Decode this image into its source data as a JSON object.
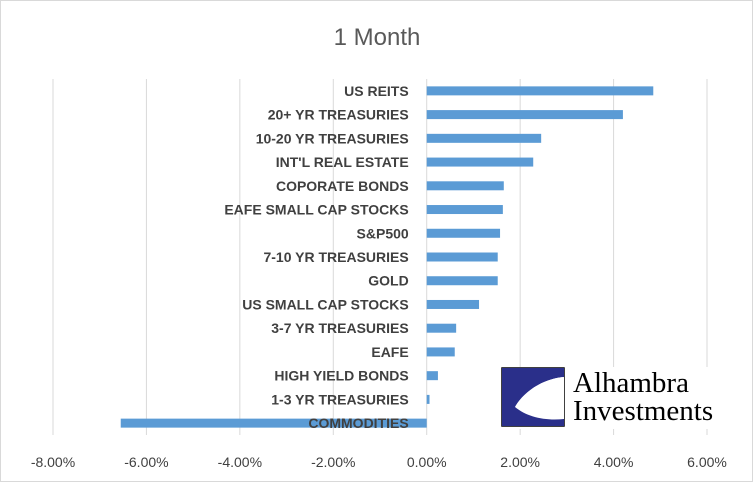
{
  "chart_data": {
    "type": "bar",
    "orientation": "horizontal",
    "title": "1 Month",
    "categories": [
      "US REITS",
      "20+ YR TREASURIES",
      "10-20 YR TREASURIES",
      "INT'L REAL ESTATE",
      "COPORATE BONDS",
      "EAFE SMALL CAP STOCKS",
      "S&P500",
      "7-10 YR TREASURIES",
      "GOLD",
      "US SMALL CAP STOCKS",
      "3-7 YR TREASURIES",
      "EAFE",
      "HIGH YIELD BONDS",
      "1-3 YR TREASURIES",
      "COMMODITIES"
    ],
    "values": [
      4.85,
      4.2,
      2.45,
      2.28,
      1.65,
      1.63,
      1.57,
      1.52,
      1.52,
      1.12,
      0.63,
      0.6,
      0.24,
      0.06,
      -6.55
    ],
    "x_ticks": [
      "-8.00%",
      "-6.00%",
      "-4.00%",
      "-2.00%",
      "0.00%",
      "2.00%",
      "4.00%",
      "6.00%"
    ],
    "xlim": [
      -8,
      6
    ],
    "grid": true,
    "colors": {
      "bar": "#5b9bd5",
      "grid": "#d9d9d9",
      "text": "#404040",
      "title": "#595959"
    }
  },
  "logo": {
    "line1": "Alhambra",
    "line2": "Investments",
    "colors": {
      "navy": "#2a2f8a",
      "text": "#000000"
    }
  }
}
